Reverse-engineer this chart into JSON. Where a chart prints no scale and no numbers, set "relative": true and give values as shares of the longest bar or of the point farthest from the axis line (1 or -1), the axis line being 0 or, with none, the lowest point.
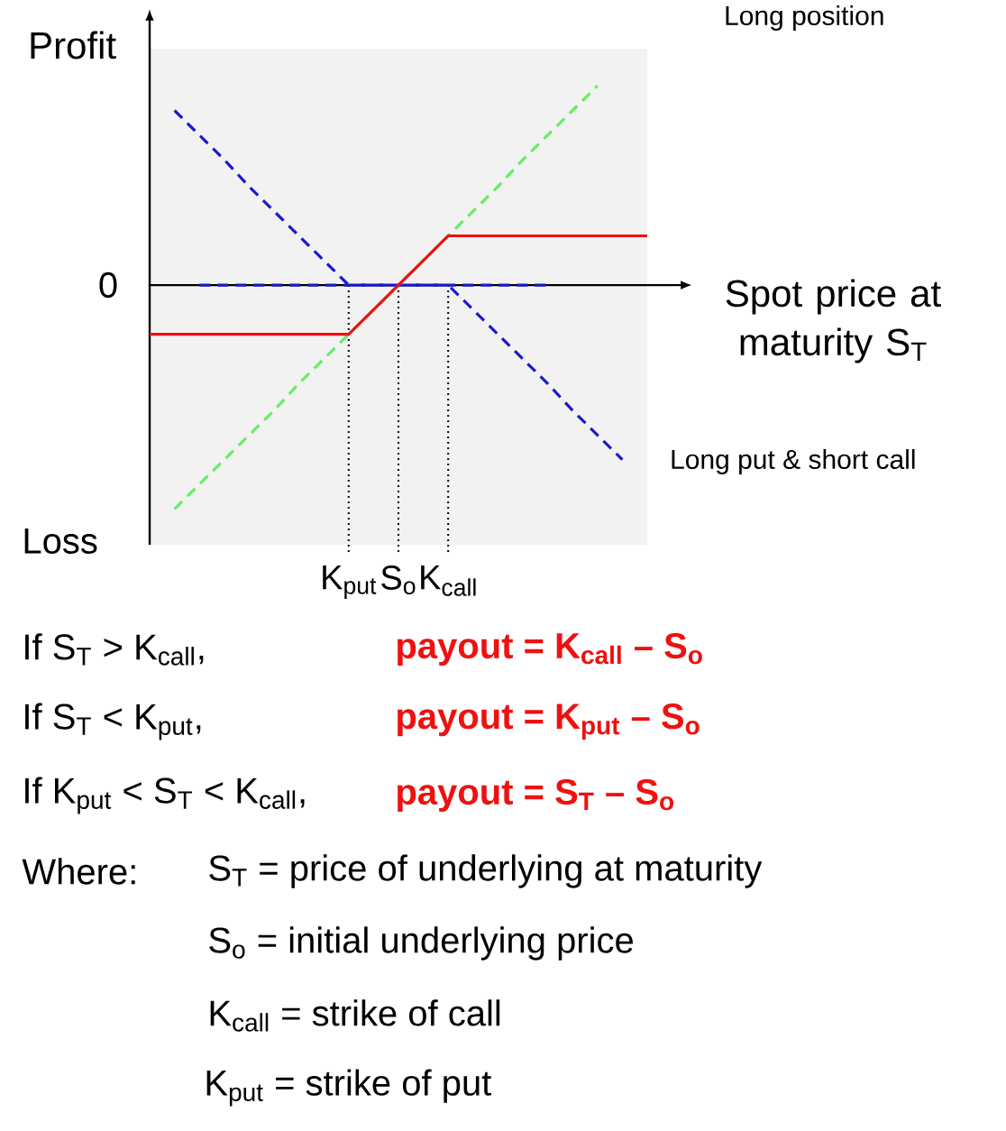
{
  "chart_data": {
    "type": "line",
    "relative": true,
    "ylabel": "Profit",
    "xlabel": "Spot price at maturity S$_{T}$",
    "categories": [
      null,
      null,
      null,
      null,
      null,
      null,
      null,
      null,
      "K$_{put}$",
      null,
      "S$_{o}$",
      null,
      "K$_{call}$",
      null,
      null,
      null,
      null,
      null,
      null,
      null,
      null
    ],
    "series": [
      {
        "name": "Long position",
        "color": "#66ee66",
        "line_style": "dashed",
        "values": [
          null,
          -1,
          -0.89,
          -0.78,
          -0.67,
          -0.56,
          -0.44,
          -0.33,
          -0.22,
          -0.11,
          0,
          0.11,
          0.22,
          0.33,
          0.44,
          0.56,
          0.67,
          0.78,
          0.89,
          null,
          null
        ]
      },
      {
        "color": "#1a1acc",
        "line_style": "dashed",
        "values": [
          null,
          0.78,
          0.67,
          0.56,
          0.44,
          0.33,
          0.22,
          0.11,
          0,
          0,
          0,
          0,
          0,
          0,
          0,
          0,
          0,
          null,
          null,
          null,
          null
        ]
      },
      {
        "name": "Long put & short call",
        "color": "#1a1acc",
        "line_style": "dashed",
        "values": [
          null,
          null,
          0,
          0,
          0,
          0,
          0,
          0,
          0,
          0,
          0,
          0,
          0,
          -0.11,
          -0.22,
          -0.33,
          -0.44,
          -0.56,
          -0.67,
          -0.78,
          null
        ]
      },
      {
        "color": "#ee1111",
        "line_style": "solid",
        "values": [
          -0.22,
          -0.22,
          -0.22,
          -0.22,
          -0.22,
          -0.22,
          -0.22,
          -0.22,
          -0.22,
          -0.11,
          0,
          0.11,
          0.22,
          0.22,
          0.22,
          0.22,
          0.22,
          0.22,
          0.22,
          0.22,
          0.22
        ]
      }
    ],
    "ref_lines": [
      {
        "axis": "x",
        "value": "K$_{put}$",
        "line_style": "dotted"
      },
      {
        "axis": "x",
        "value": "S$_{o}$",
        "line_style": "dotted"
      },
      {
        "axis": "x",
        "value": "K$_{call}$",
        "line_style": "dotted"
      }
    ],
    "annotations": [
      "0",
      "Loss",
      "If S$_{T}$ > K$_{call}$,",
      "payout = K$_{call}$ – S$_{o}$",
      "If S$_{T}$ < K$_{put}$,",
      "payout = K$_{put}$ – S$_{o}$",
      "If K$_{put}$ < S$_{T}$ < K$_{call}$,",
      "payout = S$_{T}$ – S$_{o}$",
      "Where:",
      "S$_{T}$ = price of underlying at maturity",
      "S$_{o}$ = initial underlying price",
      "K$_{call}$ = strike of call",
      "K$_{put}$ = strike of put"
    ]
  }
}
